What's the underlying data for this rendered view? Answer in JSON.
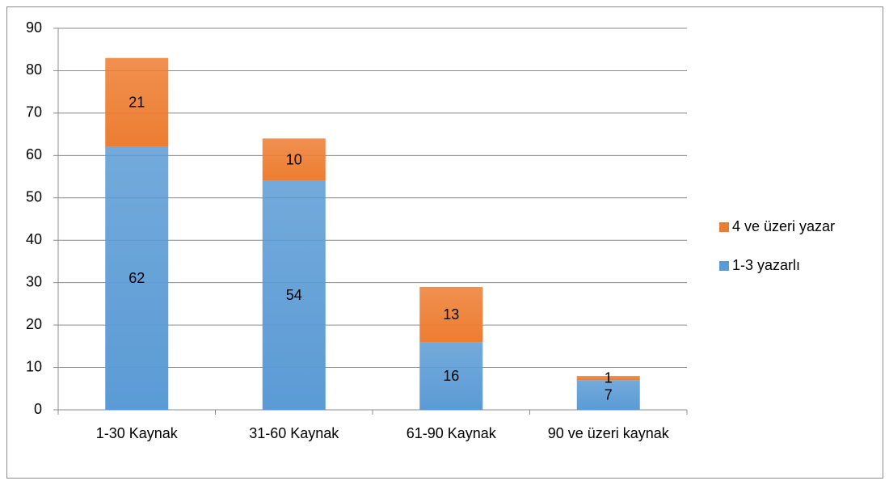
{
  "chart_data": {
    "type": "stacked_bar",
    "categories": [
      "1-30 Kaynak",
      "31-60 Kaynak",
      "61-90 Kaynak",
      "90 ve üzeri kaynak"
    ],
    "series": [
      {
        "name": "1-3 yazarlı",
        "color": "#5b9bd5",
        "values": [
          62,
          54,
          16,
          7
        ]
      },
      {
        "name": "4 ve üzeri yazar",
        "color": "#ed7d31",
        "values": [
          21,
          10,
          13,
          1
        ]
      }
    ],
    "ylim": [
      0,
      90
    ],
    "yticks": [
      0,
      10,
      20,
      30,
      40,
      50,
      60,
      70,
      80,
      90
    ],
    "grid": true,
    "legend": "right"
  }
}
